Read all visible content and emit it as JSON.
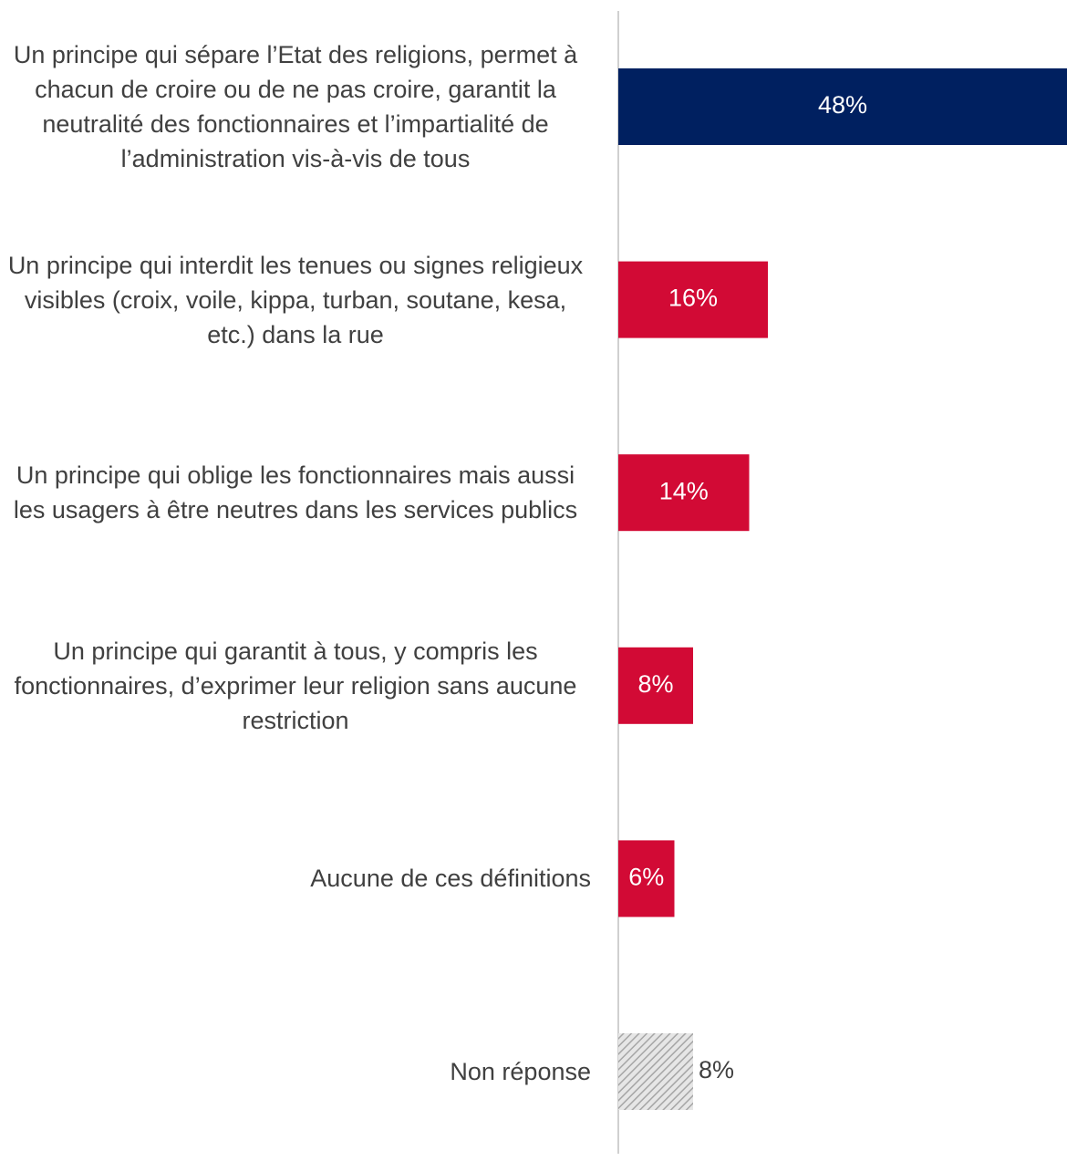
{
  "chart_data": {
    "type": "barh",
    "categories": [
      "Un principe qui sépare l’Etat des religions, permet à chacun de croire ou de ne pas croire, garantit la neutralité des fonctionnaires et l’impartialité de l’administration vis-à-vis de tous",
      "Un principe qui interdit les tenues ou signes religieux visibles (croix, voile, kippa, turban, soutane, kesa, etc.) dans la rue",
      "Un principe qui oblige les fonctionnaires mais aussi les usagers à être neutres dans les services publics",
      "Un principe qui garantit à tous, y compris les fonctionnaires, d’exprimer leur religion sans aucune restriction",
      "Aucune de ces définitions",
      "Non réponse"
    ],
    "values": [
      48,
      16,
      14,
      8,
      6,
      8
    ],
    "value_labels": [
      "48%",
      "16%",
      "14%",
      "8%",
      "6%",
      "8%"
    ],
    "colors": [
      "#002060",
      "#d20a35",
      "#d20a35",
      "#d20a35",
      "#d20a35",
      "#bfbfbf"
    ],
    "patterns": [
      null,
      null,
      null,
      null,
      null,
      "hatch"
    ],
    "xlim": [
      0,
      48
    ]
  }
}
